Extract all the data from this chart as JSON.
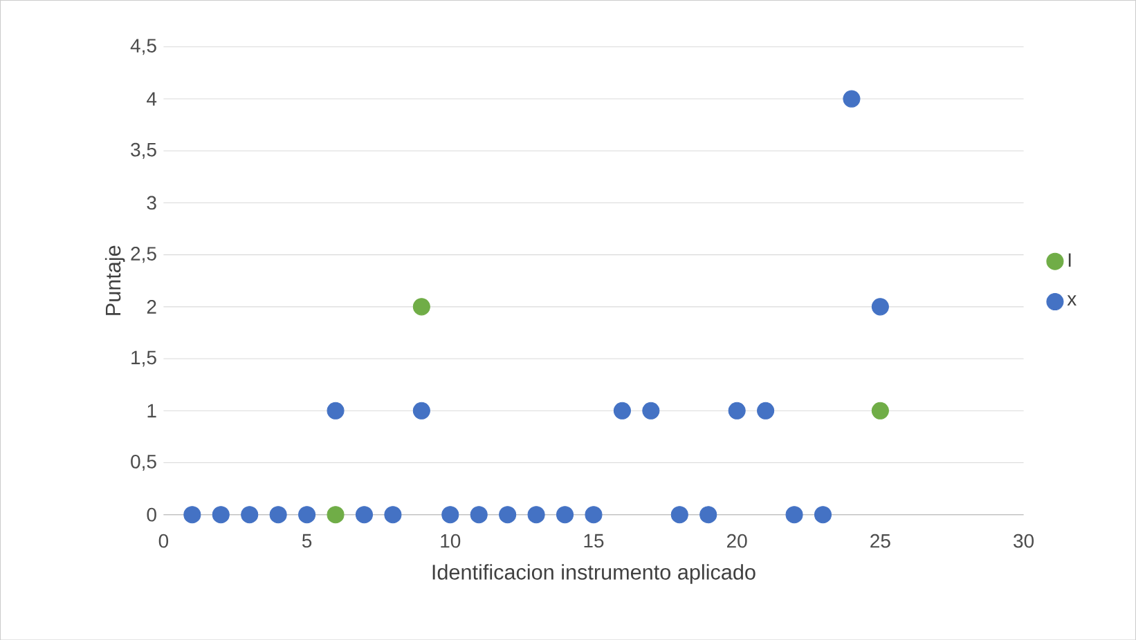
{
  "chart_data": {
    "type": "scatter",
    "xlabel": "Identificacion instrumento aplicado",
    "ylabel": "Puntaje",
    "series": [
      {
        "name": "I",
        "color": "#70ad47",
        "x": [
          6,
          9,
          25
        ],
        "values": [
          0,
          2,
          1
        ]
      },
      {
        "name": "x",
        "color": "#4472c4",
        "x": [
          1,
          2,
          3,
          4,
          5,
          6,
          7,
          8,
          9,
          10,
          11,
          12,
          13,
          14,
          15,
          16,
          17,
          18,
          19,
          20,
          21,
          22,
          23,
          24,
          25
        ],
        "values": [
          0,
          0,
          0,
          0,
          0,
          1,
          0,
          0,
          1,
          0,
          0,
          0,
          0,
          0,
          0,
          1,
          1,
          0,
          0,
          1,
          1,
          0,
          0,
          4,
          2
        ]
      }
    ],
    "xlim": [
      0,
      30
    ],
    "ylim": [
      0,
      4.5
    ],
    "xticks": [
      0,
      5,
      10,
      15,
      20,
      25,
      30
    ],
    "yticks": [
      0,
      {
        "value": 0.5,
        "label": "0,5"
      },
      1,
      {
        "value": 1.5,
        "label": "1,5"
      },
      2,
      {
        "value": 2.5,
        "label": "2,5"
      },
      3,
      {
        "value": 3.5,
        "label": "3,5"
      },
      4,
      {
        "value": 4.5,
        "label": "4,5"
      }
    ],
    "grid": "y",
    "legend": "right",
    "marker": "circle"
  }
}
